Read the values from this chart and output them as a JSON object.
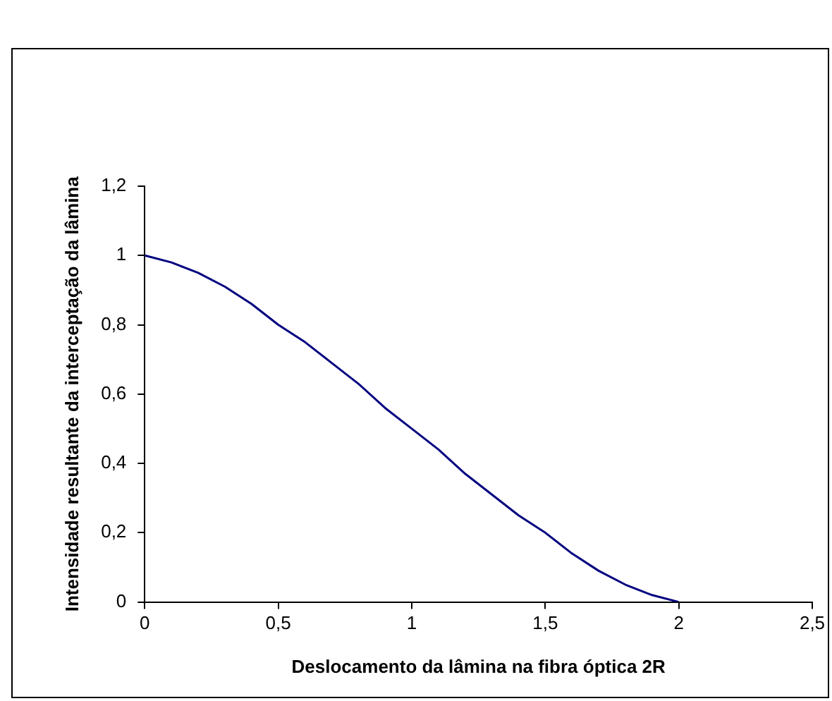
{
  "chart_data": {
    "type": "line",
    "xlabel": "Deslocamento da lâmina na fibra óptica 2R",
    "ylabel": "Intensidade resultante da interceptação da lâmina",
    "color": "#000080",
    "marker": "none",
    "grid": false,
    "legend": false,
    "x": [
      0,
      0.1,
      0.2,
      0.3,
      0.4,
      0.5,
      0.6,
      0.7,
      0.8,
      0.9,
      1,
      1.1,
      1.2,
      1.3,
      1.4,
      1.5,
      1.6,
      1.7,
      1.8,
      1.9,
      2
    ],
    "values": [
      1,
      0.98,
      0.95,
      0.91,
      0.86,
      0.8,
      0.75,
      0.69,
      0.63,
      0.56,
      0.5,
      0.44,
      0.37,
      0.31,
      0.25,
      0.2,
      0.14,
      0.09,
      0.05,
      0.02,
      0
    ],
    "xlim": [
      0,
      2.5
    ],
    "xticks": [
      0,
      {
        "value": 0.5,
        "label": "0,5"
      },
      1,
      {
        "value": 1.5,
        "label": "1,5"
      },
      2,
      {
        "value": 2.5,
        "label": "2,5"
      }
    ],
    "ylim": [
      0,
      1.2
    ],
    "yticks": [
      0,
      {
        "value": 0.2,
        "label": "0,2"
      },
      {
        "value": 0.4,
        "label": "0,4"
      },
      {
        "value": 0.6,
        "label": "0,6"
      },
      {
        "value": 0.8,
        "label": "0,8"
      },
      1,
      {
        "value": 1.2,
        "label": "1,2"
      }
    ]
  }
}
